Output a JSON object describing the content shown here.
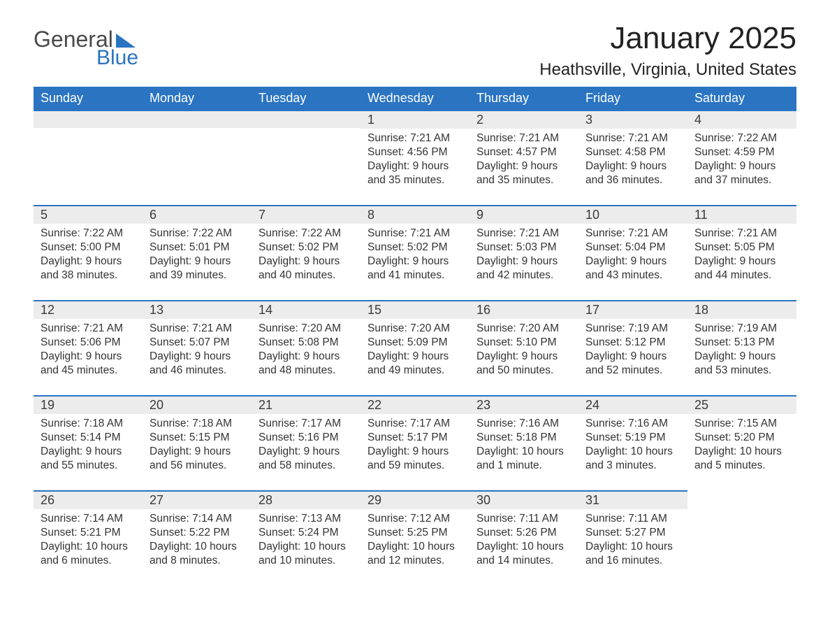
{
  "logo": {
    "line1": "General",
    "line2": "Blue"
  },
  "title": "January 2025",
  "location": "Heathsville, Virginia, United States",
  "colors": {
    "header_bg": "#2a74c2",
    "header_text": "#ffffff",
    "daynum_bg": "#ececec",
    "daynum_border": "#2a74c2",
    "body_text": "#333333",
    "page_bg": "#ffffff"
  },
  "day_labels": [
    "Sunday",
    "Monday",
    "Tuesday",
    "Wednesday",
    "Thursday",
    "Friday",
    "Saturday"
  ],
  "weeks": [
    [
      null,
      null,
      null,
      {
        "n": "1",
        "sunrise": "Sunrise: 7:21 AM",
        "sunset": "Sunset: 4:56 PM",
        "dl1": "Daylight: 9 hours",
        "dl2": "and 35 minutes."
      },
      {
        "n": "2",
        "sunrise": "Sunrise: 7:21 AM",
        "sunset": "Sunset: 4:57 PM",
        "dl1": "Daylight: 9 hours",
        "dl2": "and 35 minutes."
      },
      {
        "n": "3",
        "sunrise": "Sunrise: 7:21 AM",
        "sunset": "Sunset: 4:58 PM",
        "dl1": "Daylight: 9 hours",
        "dl2": "and 36 minutes."
      },
      {
        "n": "4",
        "sunrise": "Sunrise: 7:22 AM",
        "sunset": "Sunset: 4:59 PM",
        "dl1": "Daylight: 9 hours",
        "dl2": "and 37 minutes."
      }
    ],
    [
      {
        "n": "5",
        "sunrise": "Sunrise: 7:22 AM",
        "sunset": "Sunset: 5:00 PM",
        "dl1": "Daylight: 9 hours",
        "dl2": "and 38 minutes."
      },
      {
        "n": "6",
        "sunrise": "Sunrise: 7:22 AM",
        "sunset": "Sunset: 5:01 PM",
        "dl1": "Daylight: 9 hours",
        "dl2": "and 39 minutes."
      },
      {
        "n": "7",
        "sunrise": "Sunrise: 7:22 AM",
        "sunset": "Sunset: 5:02 PM",
        "dl1": "Daylight: 9 hours",
        "dl2": "and 40 minutes."
      },
      {
        "n": "8",
        "sunrise": "Sunrise: 7:21 AM",
        "sunset": "Sunset: 5:02 PM",
        "dl1": "Daylight: 9 hours",
        "dl2": "and 41 minutes."
      },
      {
        "n": "9",
        "sunrise": "Sunrise: 7:21 AM",
        "sunset": "Sunset: 5:03 PM",
        "dl1": "Daylight: 9 hours",
        "dl2": "and 42 minutes."
      },
      {
        "n": "10",
        "sunrise": "Sunrise: 7:21 AM",
        "sunset": "Sunset: 5:04 PM",
        "dl1": "Daylight: 9 hours",
        "dl2": "and 43 minutes."
      },
      {
        "n": "11",
        "sunrise": "Sunrise: 7:21 AM",
        "sunset": "Sunset: 5:05 PM",
        "dl1": "Daylight: 9 hours",
        "dl2": "and 44 minutes."
      }
    ],
    [
      {
        "n": "12",
        "sunrise": "Sunrise: 7:21 AM",
        "sunset": "Sunset: 5:06 PM",
        "dl1": "Daylight: 9 hours",
        "dl2": "and 45 minutes."
      },
      {
        "n": "13",
        "sunrise": "Sunrise: 7:21 AM",
        "sunset": "Sunset: 5:07 PM",
        "dl1": "Daylight: 9 hours",
        "dl2": "and 46 minutes."
      },
      {
        "n": "14",
        "sunrise": "Sunrise: 7:20 AM",
        "sunset": "Sunset: 5:08 PM",
        "dl1": "Daylight: 9 hours",
        "dl2": "and 48 minutes."
      },
      {
        "n": "15",
        "sunrise": "Sunrise: 7:20 AM",
        "sunset": "Sunset: 5:09 PM",
        "dl1": "Daylight: 9 hours",
        "dl2": "and 49 minutes."
      },
      {
        "n": "16",
        "sunrise": "Sunrise: 7:20 AM",
        "sunset": "Sunset: 5:10 PM",
        "dl1": "Daylight: 9 hours",
        "dl2": "and 50 minutes."
      },
      {
        "n": "17",
        "sunrise": "Sunrise: 7:19 AM",
        "sunset": "Sunset: 5:12 PM",
        "dl1": "Daylight: 9 hours",
        "dl2": "and 52 minutes."
      },
      {
        "n": "18",
        "sunrise": "Sunrise: 7:19 AM",
        "sunset": "Sunset: 5:13 PM",
        "dl1": "Daylight: 9 hours",
        "dl2": "and 53 minutes."
      }
    ],
    [
      {
        "n": "19",
        "sunrise": "Sunrise: 7:18 AM",
        "sunset": "Sunset: 5:14 PM",
        "dl1": "Daylight: 9 hours",
        "dl2": "and 55 minutes."
      },
      {
        "n": "20",
        "sunrise": "Sunrise: 7:18 AM",
        "sunset": "Sunset: 5:15 PM",
        "dl1": "Daylight: 9 hours",
        "dl2": "and 56 minutes."
      },
      {
        "n": "21",
        "sunrise": "Sunrise: 7:17 AM",
        "sunset": "Sunset: 5:16 PM",
        "dl1": "Daylight: 9 hours",
        "dl2": "and 58 minutes."
      },
      {
        "n": "22",
        "sunrise": "Sunrise: 7:17 AM",
        "sunset": "Sunset: 5:17 PM",
        "dl1": "Daylight: 9 hours",
        "dl2": "and 59 minutes."
      },
      {
        "n": "23",
        "sunrise": "Sunrise: 7:16 AM",
        "sunset": "Sunset: 5:18 PM",
        "dl1": "Daylight: 10 hours",
        "dl2": "and 1 minute."
      },
      {
        "n": "24",
        "sunrise": "Sunrise: 7:16 AM",
        "sunset": "Sunset: 5:19 PM",
        "dl1": "Daylight: 10 hours",
        "dl2": "and 3 minutes."
      },
      {
        "n": "25",
        "sunrise": "Sunrise: 7:15 AM",
        "sunset": "Sunset: 5:20 PM",
        "dl1": "Daylight: 10 hours",
        "dl2": "and 5 minutes."
      }
    ],
    [
      {
        "n": "26",
        "sunrise": "Sunrise: 7:14 AM",
        "sunset": "Sunset: 5:21 PM",
        "dl1": "Daylight: 10 hours",
        "dl2": "and 6 minutes."
      },
      {
        "n": "27",
        "sunrise": "Sunrise: 7:14 AM",
        "sunset": "Sunset: 5:22 PM",
        "dl1": "Daylight: 10 hours",
        "dl2": "and 8 minutes."
      },
      {
        "n": "28",
        "sunrise": "Sunrise: 7:13 AM",
        "sunset": "Sunset: 5:24 PM",
        "dl1": "Daylight: 10 hours",
        "dl2": "and 10 minutes."
      },
      {
        "n": "29",
        "sunrise": "Sunrise: 7:12 AM",
        "sunset": "Sunset: 5:25 PM",
        "dl1": "Daylight: 10 hours",
        "dl2": "and 12 minutes."
      },
      {
        "n": "30",
        "sunrise": "Sunrise: 7:11 AM",
        "sunset": "Sunset: 5:26 PM",
        "dl1": "Daylight: 10 hours",
        "dl2": "and 14 minutes."
      },
      {
        "n": "31",
        "sunrise": "Sunrise: 7:11 AM",
        "sunset": "Sunset: 5:27 PM",
        "dl1": "Daylight: 10 hours",
        "dl2": "and 16 minutes."
      },
      null
    ]
  ]
}
